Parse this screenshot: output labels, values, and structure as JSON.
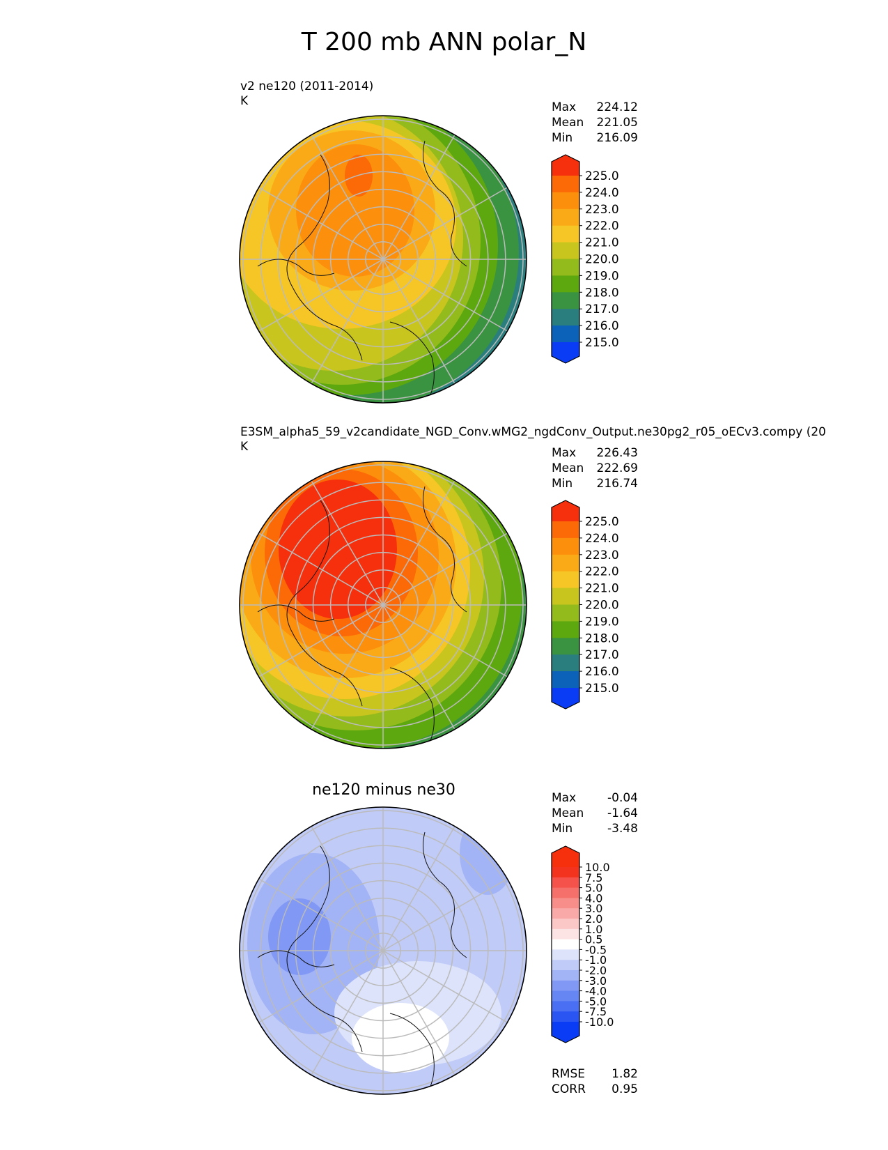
{
  "figure": {
    "title": "T 200 mb ANN polar_N"
  },
  "panels": [
    {
      "id": "test",
      "subtitle": "v2 ne120 (2011-2014)",
      "units": "K",
      "stats": [
        {
          "label": "Max",
          "value": "224.12"
        },
        {
          "label": "Mean",
          "value": "221.05"
        },
        {
          "label": "Min",
          "value": "216.09"
        }
      ]
    },
    {
      "id": "ref",
      "subtitle": "E3SM_alpha5_59_v2candidate_NGD_Conv.wMG2_ngdConv_Output.ne30pg2_r05_oECv3.compy (20",
      "units": "K",
      "stats": [
        {
          "label": "Max",
          "value": "226.43"
        },
        {
          "label": "Mean",
          "value": "222.69"
        },
        {
          "label": "Min",
          "value": "216.74"
        }
      ]
    },
    {
      "id": "diff",
      "subtitle": "ne120 minus ne30",
      "stats": [
        {
          "label": "Max",
          "value": "-0.04"
        },
        {
          "label": "Mean",
          "value": "-1.64"
        },
        {
          "label": "Min",
          "value": "-3.48"
        }
      ],
      "extra_stats": [
        {
          "label": "RMSE",
          "value": "1.82"
        },
        {
          "label": "CORR",
          "value": "0.95"
        }
      ]
    }
  ],
  "chart_data": [
    {
      "type": "polar-contour-map",
      "projection": "north polar stereographic",
      "title": "v2 ne120 (2011-2014)",
      "units": "K",
      "colorbar": {
        "levels": [
          "215.0",
          "216.0",
          "217.0",
          "218.0",
          "219.0",
          "220.0",
          "221.0",
          "222.0",
          "223.0",
          "224.0",
          "225.0"
        ],
        "colors": [
          "#0a3cf5",
          "#0b62b8",
          "#2a7f7e",
          "#3a9340",
          "#5ea80f",
          "#94bb1c",
          "#c8c51f",
          "#f5c625",
          "#fbaa17",
          "#fc8f0c",
          "#fc6a07",
          "#f6300c"
        ],
        "extend": "both"
      },
      "stats": {
        "max": 224.12,
        "mean": 221.05,
        "min": 216.09
      }
    },
    {
      "type": "polar-contour-map",
      "projection": "north polar stereographic",
      "title": "E3SM_alpha5_59_v2candidate_NGD_Conv.wMG2_ngdConv_Output.ne30pg2_r05_oECv3.compy",
      "units": "K",
      "colorbar": {
        "levels": [
          "215.0",
          "216.0",
          "217.0",
          "218.0",
          "219.0",
          "220.0",
          "221.0",
          "222.0",
          "223.0",
          "224.0",
          "225.0"
        ],
        "colors": [
          "#0a3cf5",
          "#0b62b8",
          "#2a7f7e",
          "#3a9340",
          "#5ea80f",
          "#94bb1c",
          "#c8c51f",
          "#f5c625",
          "#fbaa17",
          "#fc8f0c",
          "#fc6a07",
          "#f6300c"
        ],
        "extend": "both"
      },
      "stats": {
        "max": 226.43,
        "mean": 222.69,
        "min": 216.74
      }
    },
    {
      "type": "polar-contour-map",
      "projection": "north polar stereographic",
      "title": "ne120 minus ne30",
      "colorbar": {
        "levels": [
          "-10.0",
          "-7.5",
          "-5.0",
          "-4.0",
          "-3.0",
          "-2.0",
          "-1.0",
          "-0.5",
          "0.5",
          "1.0",
          "2.0",
          "3.0",
          "4.0",
          "5.0",
          "7.5",
          "10.0"
        ],
        "colors": [
          "#0a3cf5",
          "#2b55f2",
          "#4a6ff2",
          "#6686f3",
          "#8199f4",
          "#a3b4f6",
          "#c0cbf8",
          "#dce3fb",
          "#ffffff",
          "#fde4e4",
          "#fbc7c7",
          "#f9aaa8",
          "#f78e89",
          "#f5706a",
          "#f4524a",
          "#f4331f",
          "#f6300c"
        ],
        "extend": "both"
      },
      "stats": {
        "max": -0.04,
        "mean": -1.64,
        "min": -3.48,
        "rmse": 1.82,
        "corr": 0.95
      }
    }
  ]
}
